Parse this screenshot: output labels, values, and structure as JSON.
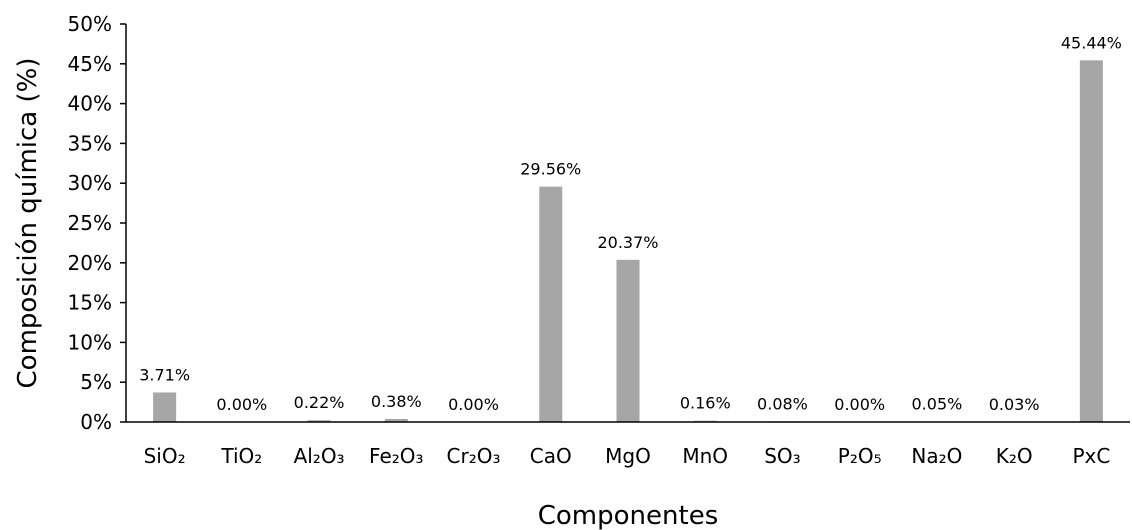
{
  "chart_data": {
    "type": "bar",
    "title": "",
    "xlabel": "Componentes",
    "ylabel": "Composición química (%)",
    "categories": [
      "SiO₂",
      "TiO₂",
      "Al₂O₃",
      "Fe₂O₃",
      "Cr₂O₃",
      "CaO",
      "MgO",
      "MnO",
      "SO₃",
      "P₂O₅",
      "Na₂O",
      "K₂O",
      "PxC"
    ],
    "values": [
      3.71,
      0.0,
      0.22,
      0.38,
      0.0,
      29.56,
      20.37,
      0.16,
      0.08,
      0.0,
      0.05,
      0.03,
      45.44
    ],
    "data_labels": [
      "3.71%",
      "0.00%",
      "0.22%",
      "0.38%",
      "0.00%",
      "29.56%",
      "20.37%",
      "0.16%",
      "0.08%",
      "0.00%",
      "0.05%",
      "0.03%",
      "45.44%"
    ],
    "ylim": [
      0,
      50
    ],
    "yticks": [
      0,
      5,
      10,
      15,
      20,
      25,
      30,
      35,
      40,
      45,
      50
    ],
    "ytick_labels": [
      "0%",
      "5%",
      "10%",
      "15%",
      "20%",
      "25%",
      "30%",
      "35%",
      "40%",
      "45%",
      "50%"
    ],
    "bar_color": "#a6a6a6",
    "grid": false,
    "legend": "none"
  }
}
